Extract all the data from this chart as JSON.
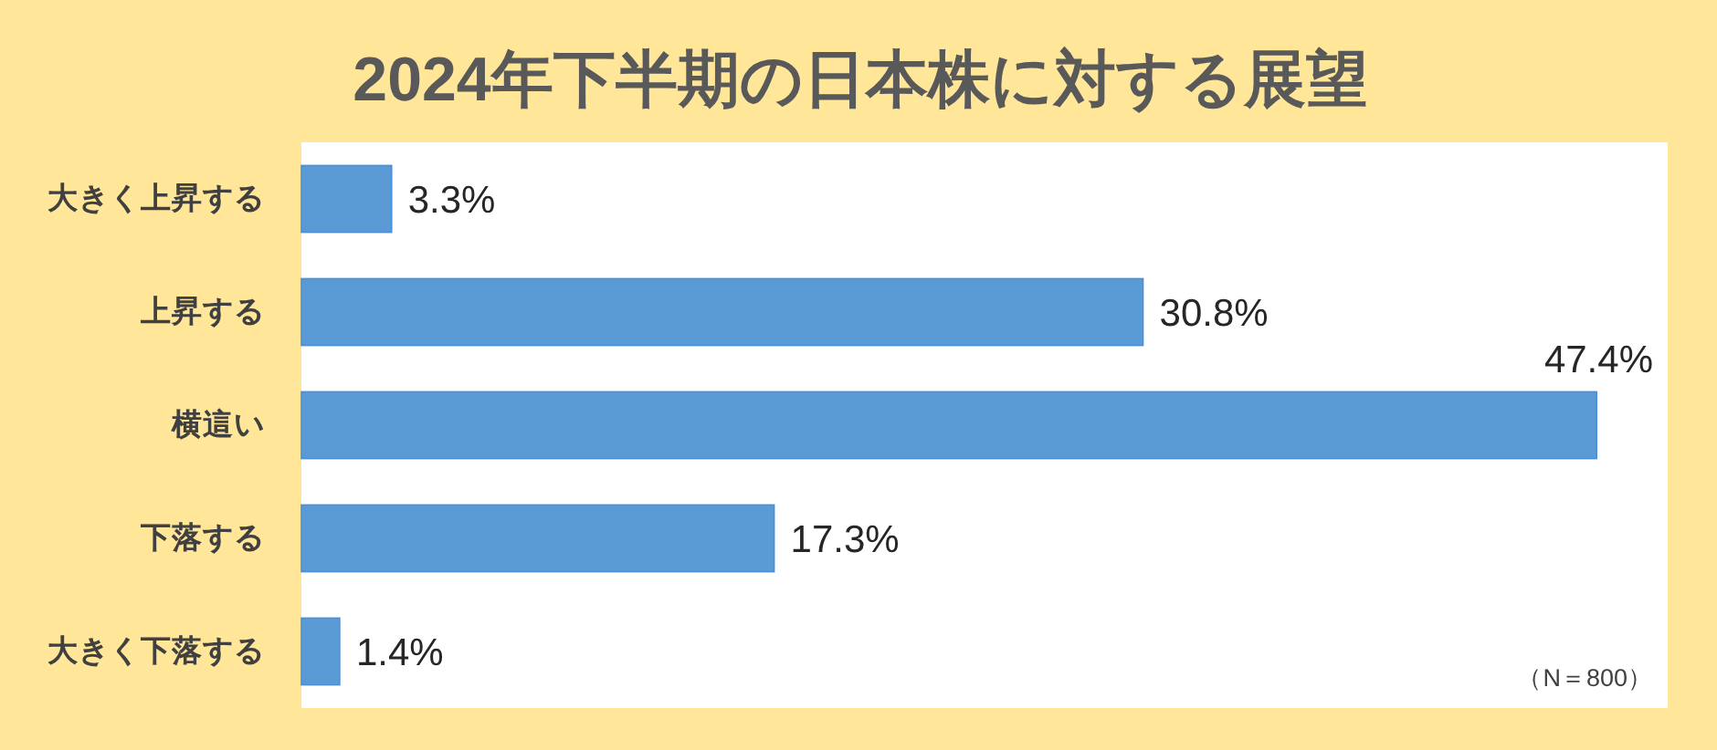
{
  "chart_data": {
    "type": "bar",
    "orientation": "horizontal",
    "title": "2024年下半期の日本株に対する展望",
    "categories": [
      "大きく上昇する",
      "上昇する",
      "横這い",
      "下落する",
      "大きく下落する"
    ],
    "values": [
      3.3,
      30.8,
      47.4,
      17.3,
      1.4
    ],
    "value_labels": [
      "3.3%",
      "30.8%",
      "47.4%",
      "17.3%",
      "1.4%"
    ],
    "color": "#5b9bd5",
    "xlim": [
      0,
      50
    ],
    "tick_labels": "y",
    "annotations": [
      "（N＝800）"
    ]
  }
}
